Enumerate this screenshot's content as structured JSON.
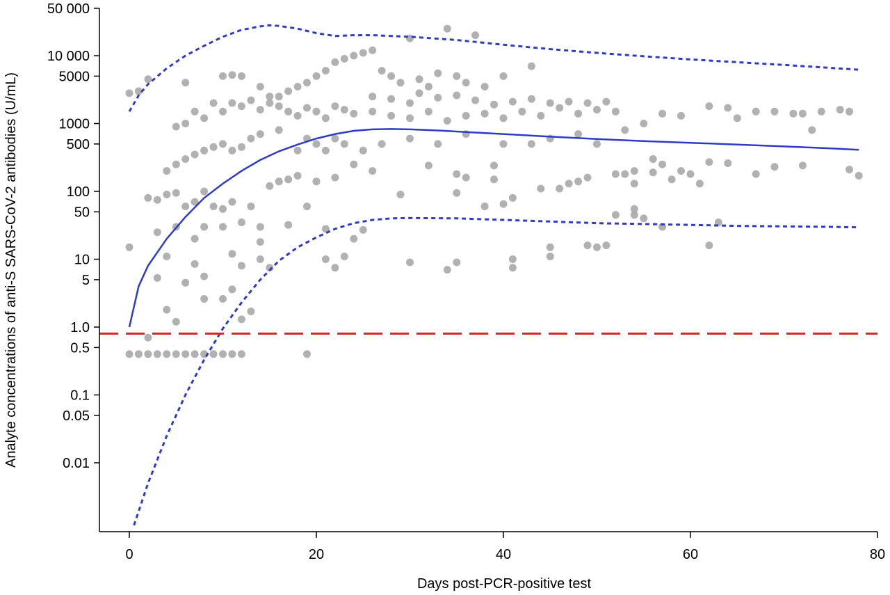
{
  "chart_data": {
    "type": "scatter",
    "title": "",
    "xlabel": "Days post-PCR-positive test",
    "ylabel": "Analyte concentrations of anti-S SARS-CoV-2 antibodies (U/mL)",
    "x_scale": "linear",
    "y_scale": "log",
    "xlim": [
      -3,
      80
    ],
    "ylim": [
      0.001,
      50000
    ],
    "x_ticks": [
      0,
      20,
      40,
      60,
      80
    ],
    "x_tick_labels": [
      "0",
      "20",
      "40",
      "60",
      "80"
    ],
    "y_ticks": [
      50000,
      10000,
      5000,
      1000,
      500,
      100,
      50,
      10,
      5,
      1.0,
      0.5,
      0.1,
      0.05,
      0.01
    ],
    "y_tick_labels": [
      "50 000",
      "10 000",
      "5000",
      "1000",
      "500",
      "100",
      "50",
      "10",
      "5",
      "1.0",
      "0.5",
      "0.1",
      "0.05",
      "0.01"
    ],
    "grid": false,
    "legend": null,
    "colors": {
      "points": "#a9a9a9",
      "fit_line": "#2e3bc7",
      "band_line": "#2e3bc7",
      "threshold_line": "#d9261c"
    },
    "threshold": {
      "y": 0.8,
      "style": "dashed"
    },
    "fit_curve": {
      "x": [
        0,
        1,
        2,
        4,
        6,
        8,
        10,
        12,
        14,
        16,
        18,
        20,
        22,
        24,
        26,
        28,
        30,
        33,
        36,
        40,
        45,
        50,
        55,
        60,
        65,
        70,
        75,
        78
      ],
      "y": [
        1,
        4,
        8,
        20,
        42,
        80,
        130,
        200,
        290,
        390,
        490,
        600,
        700,
        780,
        820,
        830,
        820,
        790,
        750,
        700,
        640,
        590,
        550,
        520,
        490,
        460,
        430,
        410
      ]
    },
    "upper_band": {
      "x": [
        0,
        1,
        2,
        4,
        6,
        8,
        10,
        12,
        14,
        15,
        16,
        18,
        20,
        22,
        24,
        26,
        28,
        30,
        35,
        40,
        45,
        50,
        55,
        60,
        65,
        70,
        75,
        78
      ],
      "y": [
        1500,
        2600,
        3800,
        6500,
        10000,
        14000,
        19000,
        24000,
        27000,
        28000,
        27500,
        25000,
        21500,
        19500,
        20000,
        20000,
        19500,
        19000,
        17000,
        14500,
        12500,
        11000,
        9800,
        8800,
        8000,
        7300,
        6600,
        6200
      ]
    },
    "lower_band": {
      "x": [
        0.5,
        2,
        4,
        6,
        8,
        10,
        12,
        14,
        16,
        18,
        20,
        22,
        24,
        26,
        28,
        30,
        35,
        40,
        45,
        50,
        55,
        60,
        65,
        70,
        75,
        78
      ],
      "y": [
        0.0012,
        0.005,
        0.025,
        0.1,
        0.33,
        0.95,
        2.3,
        5,
        9.5,
        15,
        21,
        28,
        34,
        38,
        40,
        40.5,
        40,
        38,
        36,
        34,
        33,
        32,
        31,
        30.5,
        30,
        29.5
      ]
    },
    "points": [
      {
        "x": 0,
        "y": 0.4
      },
      {
        "x": 1,
        "y": 0.4
      },
      {
        "x": 2,
        "y": 0.4
      },
      {
        "x": 3,
        "y": 0.4
      },
      {
        "x": 4,
        "y": 0.4
      },
      {
        "x": 5,
        "y": 0.4
      },
      {
        "x": 6,
        "y": 0.4
      },
      {
        "x": 7,
        "y": 0.4
      },
      {
        "x": 8,
        "y": 0.4
      },
      {
        "x": 9,
        "y": 0.4
      },
      {
        "x": 10,
        "y": 0.4
      },
      {
        "x": 11,
        "y": 0.4
      },
      {
        "x": 12,
        "y": 0.4
      },
      {
        "x": 19,
        "y": 0.4
      },
      {
        "x": 2,
        "y": 0.7
      },
      {
        "x": 5,
        "y": 1.2
      },
      {
        "x": 12,
        "y": 1.3
      },
      {
        "x": 4,
        "y": 1.8
      },
      {
        "x": 13,
        "y": 1.7
      },
      {
        "x": 8,
        "y": 2.6
      },
      {
        "x": 10,
        "y": 2.6
      },
      {
        "x": 6,
        "y": 4.5
      },
      {
        "x": 11,
        "y": 3.6
      },
      {
        "x": 3,
        "y": 5.3
      },
      {
        "x": 8,
        "y": 5.6
      },
      {
        "x": 7,
        "y": 8.5
      },
      {
        "x": 12,
        "y": 8
      },
      {
        "x": 14,
        "y": 10
      },
      {
        "x": 15,
        "y": 7.5
      },
      {
        "x": 0,
        "y": 15
      },
      {
        "x": 4,
        "y": 11
      },
      {
        "x": 11,
        "y": 12
      },
      {
        "x": 14,
        "y": 18
      },
      {
        "x": 21,
        "y": 10
      },
      {
        "x": 22,
        "y": 7.5
      },
      {
        "x": 23,
        "y": 11
      },
      {
        "x": 24,
        "y": 20
      },
      {
        "x": 30,
        "y": 9
      },
      {
        "x": 35,
        "y": 9
      },
      {
        "x": 34,
        "y": 7
      },
      {
        "x": 41,
        "y": 10
      },
      {
        "x": 41,
        "y": 7.5
      },
      {
        "x": 45,
        "y": 15
      },
      {
        "x": 45,
        "y": 11
      },
      {
        "x": 49,
        "y": 16
      },
      {
        "x": 50,
        "y": 15
      },
      {
        "x": 51,
        "y": 16
      },
      {
        "x": 62,
        "y": 16
      },
      {
        "x": 3,
        "y": 25
      },
      {
        "x": 5,
        "y": 30
      },
      {
        "x": 7,
        "y": 20
      },
      {
        "x": 8,
        "y": 30
      },
      {
        "x": 10,
        "y": 30
      },
      {
        "x": 12,
        "y": 35
      },
      {
        "x": 14,
        "y": 30
      },
      {
        "x": 17,
        "y": 32
      },
      {
        "x": 19,
        "y": 60
      },
      {
        "x": 21,
        "y": 28
      },
      {
        "x": 25,
        "y": 27
      },
      {
        "x": 35,
        "y": 95
      },
      {
        "x": 38,
        "y": 60
      },
      {
        "x": 40,
        "y": 65
      },
      {
        "x": 41,
        "y": 80
      },
      {
        "x": 46,
        "y": 110
      },
      {
        "x": 48,
        "y": 140
      },
      {
        "x": 52,
        "y": 45
      },
      {
        "x": 54,
        "y": 55
      },
      {
        "x": 54,
        "y": 45
      },
      {
        "x": 55,
        "y": 40
      },
      {
        "x": 57,
        "y": 30
      },
      {
        "x": 63,
        "y": 35
      },
      {
        "x": 2,
        "y": 80
      },
      {
        "x": 3,
        "y": 75
      },
      {
        "x": 4,
        "y": 90
      },
      {
        "x": 5,
        "y": 95
      },
      {
        "x": 6,
        "y": 60
      },
      {
        "x": 7,
        "y": 70
      },
      {
        "x": 8,
        "y": 100
      },
      {
        "x": 9,
        "y": 60
      },
      {
        "x": 10,
        "y": 55
      },
      {
        "x": 11,
        "y": 70
      },
      {
        "x": 13,
        "y": 60
      },
      {
        "x": 15,
        "y": 120
      },
      {
        "x": 16,
        "y": 140
      },
      {
        "x": 17,
        "y": 150
      },
      {
        "x": 18,
        "y": 170
      },
      {
        "x": 20,
        "y": 140
      },
      {
        "x": 22,
        "y": 160
      },
      {
        "x": 24,
        "y": 250
      },
      {
        "x": 26,
        "y": 200
      },
      {
        "x": 29,
        "y": 90
      },
      {
        "x": 32,
        "y": 240
      },
      {
        "x": 35,
        "y": 180
      },
      {
        "x": 36,
        "y": 160
      },
      {
        "x": 39,
        "y": 240
      },
      {
        "x": 39,
        "y": 150
      },
      {
        "x": 44,
        "y": 110
      },
      {
        "x": 47,
        "y": 130
      },
      {
        "x": 49,
        "y": 160
      },
      {
        "x": 52,
        "y": 180
      },
      {
        "x": 53,
        "y": 180
      },
      {
        "x": 54,
        "y": 130
      },
      {
        "x": 56,
        "y": 190
      },
      {
        "x": 58,
        "y": 150
      },
      {
        "x": 60,
        "y": 180
      },
      {
        "x": 61,
        "y": 130
      },
      {
        "x": 62,
        "y": 270
      },
      {
        "x": 64,
        "y": 260
      },
      {
        "x": 67,
        "y": 180
      },
      {
        "x": 69,
        "y": 230
      },
      {
        "x": 72,
        "y": 240
      },
      {
        "x": 77,
        "y": 210
      },
      {
        "x": 78,
        "y": 170
      },
      {
        "x": 4,
        "y": 200
      },
      {
        "x": 5,
        "y": 250
      },
      {
        "x": 6,
        "y": 300
      },
      {
        "x": 7,
        "y": 350
      },
      {
        "x": 8,
        "y": 400
      },
      {
        "x": 9,
        "y": 450
      },
      {
        "x": 10,
        "y": 500
      },
      {
        "x": 11,
        "y": 400
      },
      {
        "x": 12,
        "y": 450
      },
      {
        "x": 13,
        "y": 600
      },
      {
        "x": 14,
        "y": 700
      },
      {
        "x": 16,
        "y": 800
      },
      {
        "x": 18,
        "y": 400
      },
      {
        "x": 19,
        "y": 600
      },
      {
        "x": 20,
        "y": 500
      },
      {
        "x": 21,
        "y": 400
      },
      {
        "x": 22,
        "y": 600
      },
      {
        "x": 23,
        "y": 500
      },
      {
        "x": 25,
        "y": 400
      },
      {
        "x": 27,
        "y": 500
      },
      {
        "x": 30,
        "y": 600
      },
      {
        "x": 33,
        "y": 500
      },
      {
        "x": 36,
        "y": 700
      },
      {
        "x": 40,
        "y": 500
      },
      {
        "x": 43,
        "y": 500
      },
      {
        "x": 45,
        "y": 600
      },
      {
        "x": 48,
        "y": 700
      },
      {
        "x": 50,
        "y": 500
      },
      {
        "x": 53,
        "y": 800
      },
      {
        "x": 56,
        "y": 300
      },
      {
        "x": 59,
        "y": 200
      },
      {
        "x": 54,
        "y": 200
      },
      {
        "x": 57,
        "y": 250
      },
      {
        "x": 5,
        "y": 900
      },
      {
        "x": 6,
        "y": 1000
      },
      {
        "x": 7,
        "y": 1500
      },
      {
        "x": 8,
        "y": 1200
      },
      {
        "x": 9,
        "y": 2000
      },
      {
        "x": 10,
        "y": 1500
      },
      {
        "x": 11,
        "y": 2000
      },
      {
        "x": 12,
        "y": 1800
      },
      {
        "x": 13,
        "y": 2200
      },
      {
        "x": 14,
        "y": 1600
      },
      {
        "x": 15,
        "y": 2000
      },
      {
        "x": 16,
        "y": 1800
      },
      {
        "x": 17,
        "y": 1500
      },
      {
        "x": 18,
        "y": 1300
      },
      {
        "x": 19,
        "y": 1700
      },
      {
        "x": 20,
        "y": 1500
      },
      {
        "x": 21,
        "y": 1200
      },
      {
        "x": 22,
        "y": 1800
      },
      {
        "x": 23,
        "y": 1600
      },
      {
        "x": 24,
        "y": 1400
      },
      {
        "x": 26,
        "y": 1500
      },
      {
        "x": 28,
        "y": 1300
      },
      {
        "x": 30,
        "y": 1200
      },
      {
        "x": 32,
        "y": 1500
      },
      {
        "x": 34,
        "y": 1100
      },
      {
        "x": 36,
        "y": 1300
      },
      {
        "x": 38,
        "y": 1400
      },
      {
        "x": 40,
        "y": 1200
      },
      {
        "x": 42,
        "y": 1500
      },
      {
        "x": 44,
        "y": 1300
      },
      {
        "x": 46,
        "y": 1700
      },
      {
        "x": 48,
        "y": 1400
      },
      {
        "x": 50,
        "y": 1600
      },
      {
        "x": 52,
        "y": 1500
      },
      {
        "x": 55,
        "y": 1000
      },
      {
        "x": 57,
        "y": 1400
      },
      {
        "x": 59,
        "y": 1300
      },
      {
        "x": 62,
        "y": 1800
      },
      {
        "x": 64,
        "y": 1700
      },
      {
        "x": 65,
        "y": 1200
      },
      {
        "x": 67,
        "y": 1500
      },
      {
        "x": 69,
        "y": 1500
      },
      {
        "x": 71,
        "y": 1400
      },
      {
        "x": 72,
        "y": 1400
      },
      {
        "x": 74,
        "y": 1500
      },
      {
        "x": 76,
        "y": 1600
      },
      {
        "x": 77,
        "y": 1500
      },
      {
        "x": 73,
        "y": 800
      },
      {
        "x": 6,
        "y": 4000
      },
      {
        "x": 10,
        "y": 5000
      },
      {
        "x": 11,
        "y": 5200
      },
      {
        "x": 12,
        "y": 5000
      },
      {
        "x": 17,
        "y": 3000
      },
      {
        "x": 18,
        "y": 3500
      },
      {
        "x": 19,
        "y": 4000
      },
      {
        "x": 20,
        "y": 5000
      },
      {
        "x": 21,
        "y": 6000
      },
      {
        "x": 22,
        "y": 8000
      },
      {
        "x": 23,
        "y": 9000
      },
      {
        "x": 24,
        "y": 10000
      },
      {
        "x": 25,
        "y": 11000
      },
      {
        "x": 26,
        "y": 12000
      },
      {
        "x": 27,
        "y": 6000
      },
      {
        "x": 28,
        "y": 5000
      },
      {
        "x": 29,
        "y": 4000
      },
      {
        "x": 30,
        "y": 18000
      },
      {
        "x": 31,
        "y": 4500
      },
      {
        "x": 32,
        "y": 3500
      },
      {
        "x": 33,
        "y": 5500
      },
      {
        "x": 34,
        "y": 25000
      },
      {
        "x": 35,
        "y": 5000
      },
      {
        "x": 36,
        "y": 4000
      },
      {
        "x": 37,
        "y": 20000
      },
      {
        "x": 38,
        "y": 3500
      },
      {
        "x": 40,
        "y": 5000
      },
      {
        "x": 43,
        "y": 7000
      },
      {
        "x": 0,
        "y": 2800
      },
      {
        "x": 1,
        "y": 3000
      },
      {
        "x": 2,
        "y": 4500
      },
      {
        "x": 14,
        "y": 3500
      },
      {
        "x": 15,
        "y": 2500
      },
      {
        "x": 16,
        "y": 2500
      },
      {
        "x": 26,
        "y": 2500
      },
      {
        "x": 28,
        "y": 2300
      },
      {
        "x": 30,
        "y": 2000
      },
      {
        "x": 31,
        "y": 2800
      },
      {
        "x": 33,
        "y": 2400
      },
      {
        "x": 35,
        "y": 2600
      },
      {
        "x": 37,
        "y": 2200
      },
      {
        "x": 39,
        "y": 1900
      },
      {
        "x": 41,
        "y": 2100
      },
      {
        "x": 43,
        "y": 2300
      },
      {
        "x": 45,
        "y": 2000
      },
      {
        "x": 47,
        "y": 2100
      },
      {
        "x": 49,
        "y": 2000
      },
      {
        "x": 51,
        "y": 2100
      }
    ]
  }
}
